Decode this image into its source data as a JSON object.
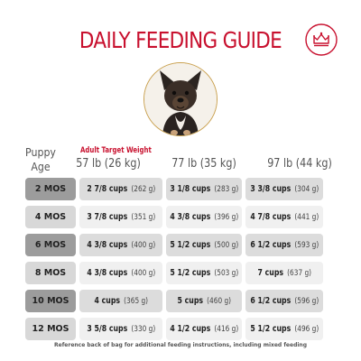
{
  "title": "DAILY FEEDING GUIDE",
  "brand_color": "#c8102e",
  "header": {
    "age_label": "Puppy Age",
    "adult_target_label": "Adult Target Weight",
    "weights": [
      "57 lb (26 kg)",
      "77 lb (35 kg)",
      "97 lb (44 kg)"
    ]
  },
  "table": {
    "rows": [
      {
        "age": "2 MOS",
        "cells": [
          {
            "cups": "2 7/8 cups",
            "grams": "(262 g)"
          },
          {
            "cups": "3 1/8 cups",
            "grams": "(283 g)"
          },
          {
            "cups": "3 3/8 cups",
            "grams": "(304 g)"
          }
        ]
      },
      {
        "age": "4 MOS",
        "cells": [
          {
            "cups": "3 7/8 cups",
            "grams": "(351 g)"
          },
          {
            "cups": "4 3/8 cups",
            "grams": "(396 g)"
          },
          {
            "cups": "4 7/8 cups",
            "grams": "(441 g)"
          }
        ]
      },
      {
        "age": "6 MOS",
        "cells": [
          {
            "cups": "4 3/8 cups",
            "grams": "(400 g)"
          },
          {
            "cups": "5 1/2 cups",
            "grams": "(500 g)"
          },
          {
            "cups": "6 1/2 cups",
            "grams": "(593 g)"
          }
        ]
      },
      {
        "age": "8 MOS",
        "cells": [
          {
            "cups": "4 3/8 cups",
            "grams": "(400 g)"
          },
          {
            "cups": "5 1/2 cups",
            "grams": "(503 g)"
          },
          {
            "cups": "7 cups",
            "grams": "(637 g)"
          }
        ]
      },
      {
        "age": "10 MOS",
        "cells": [
          {
            "cups": "4 cups",
            "grams": "(365 g)"
          },
          {
            "cups": "5 cups",
            "grams": "(460 g)"
          },
          {
            "cups": "6 1/2 cups",
            "grams": "(596 g)"
          }
        ]
      },
      {
        "age": "12 MOS",
        "cells": [
          {
            "cups": "3 5/8 cups",
            "grams": "(330 g)"
          },
          {
            "cups": "4 1/2 cups",
            "grams": "(416 g)"
          },
          {
            "cups": "5 1/2 cups",
            "grams": "(496 g)"
          }
        ]
      }
    ]
  },
  "footnote": "Reference back of bag for additional feeding instructions, including mixed feeding",
  "icons": {
    "logo": "crown-logo-icon",
    "photo": "puppy-photo"
  }
}
